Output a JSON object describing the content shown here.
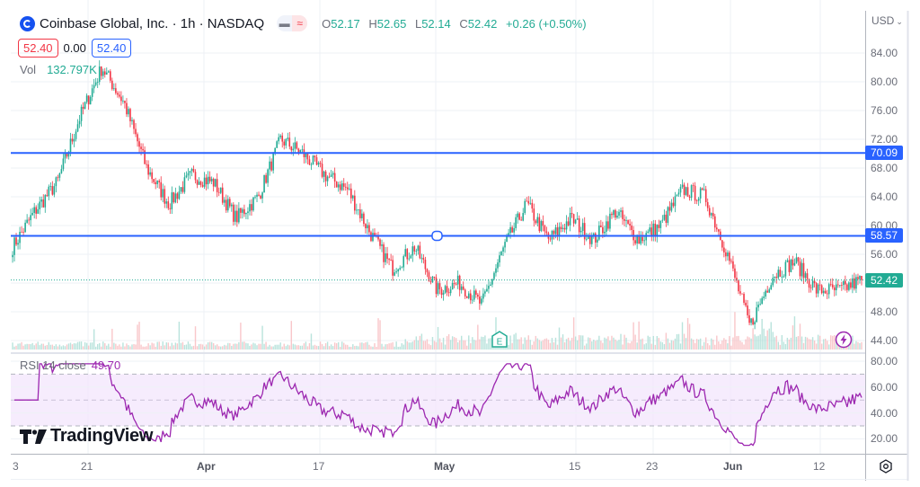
{
  "header": {
    "symbol_title": "Coinbase Global, Inc. · 1h · NASDAQ",
    "logo_icon": "coinbase-logo-icon",
    "toggle_icons": [
      "minus-icon",
      "approx-wave-icon"
    ],
    "ohlc": {
      "open_label": "O",
      "open": "52.17",
      "high_label": "H",
      "high": "52.65",
      "low_label": "L",
      "low": "52.14",
      "close_label": "C",
      "close": "52.42",
      "change": "+0.26 (+0.50%)"
    },
    "bid": "52.40",
    "spread": "0.00",
    "ask": "52.40",
    "volume_label": "Vol",
    "volume_value": "132.797K"
  },
  "price_axis": {
    "currency": "USD",
    "currency_caret": "⌄",
    "ticks": [
      "84.00",
      "80.00",
      "76.00",
      "72.00",
      "68.00",
      "64.00",
      "60.00",
      "56.00",
      "48.00",
      "44.00"
    ],
    "tags": [
      {
        "label": "70.09",
        "color": "#2962ff",
        "kind": "horizontal-line"
      },
      {
        "label": "58.57",
        "color": "#2962ff",
        "kind": "horizontal-line"
      },
      {
        "label": "52.42",
        "color": "#22ab94",
        "kind": "last-price"
      }
    ]
  },
  "rsi": {
    "label": "RSI 14 close",
    "value": "49.70",
    "ticks": [
      "80.00",
      "60.00",
      "40.00",
      "20.00"
    ],
    "band_upper": 70,
    "band_lower": 30,
    "color": "#9c27b0"
  },
  "time_axis": {
    "labels": [
      {
        "text": "3",
        "bold": false
      },
      {
        "text": "21",
        "bold": false
      },
      {
        "text": "Apr",
        "bold": true
      },
      {
        "text": "17",
        "bold": false
      },
      {
        "text": "May",
        "bold": true
      },
      {
        "text": "15",
        "bold": false
      },
      {
        "text": "23",
        "bold": false
      },
      {
        "text": "Jun",
        "bold": true
      },
      {
        "text": "12",
        "bold": false
      }
    ]
  },
  "markers": {
    "earnings_label": "E",
    "earnings_icon": "earnings-marker-icon",
    "dividend_icon": "lightning-icon"
  },
  "branding": {
    "logo_icon": "tradingview-logo-icon",
    "text": "TradingView"
  },
  "settings_icon": "settings-gear-icon",
  "colors": {
    "up": "#22ab94",
    "down": "#f23645",
    "hline": "#2962ff",
    "rsi": "#9c27b0",
    "rsi_band": "#f3e5fc"
  },
  "chart_data": [
    {
      "type": "candlestick",
      "title": "Coinbase Global, Inc. · 1h · NASDAQ",
      "ylabel": "USD",
      "ylim": [
        43,
        87
      ],
      "x_labels": [
        "3",
        "21",
        "Apr",
        "17",
        "May",
        "15",
        "23",
        "Jun",
        "12"
      ],
      "horizontal_lines": [
        70.09,
        58.57
      ],
      "last_price": 52.42,
      "last_bar": {
        "open": 52.17,
        "high": 52.65,
        "low": 52.14,
        "close": 52.42,
        "change": 0.26,
        "change_pct": 0.5
      },
      "approx_close_path": [
        {
          "x_label": "3",
          "close": 57
        },
        {
          "x_label": "~13",
          "close": 62
        },
        {
          "x_label": "~17",
          "close": 66
        },
        {
          "x_label": "~19",
          "close": 75
        },
        {
          "x_label": "21",
          "close": 82
        },
        {
          "x_label": "~22",
          "close": 77
        },
        {
          "x_label": "~24",
          "close": 68
        },
        {
          "x_label": "~27",
          "close": 63
        },
        {
          "x_label": "~30",
          "close": 67
        },
        {
          "x_label": "Apr",
          "close": 66
        },
        {
          "x_label": "~5",
          "close": 61
        },
        {
          "x_label": "~10",
          "close": 64
        },
        {
          "x_label": "~12",
          "close": 72
        },
        {
          "x_label": "17",
          "close": 70
        },
        {
          "x_label": "~19",
          "close": 67
        },
        {
          "x_label": "~21",
          "close": 65
        },
        {
          "x_label": "~25",
          "close": 59
        },
        {
          "x_label": "~26",
          "close": 54
        },
        {
          "x_label": "~28",
          "close": 57
        },
        {
          "x_label": "May",
          "close": 51
        },
        {
          "x_label": "~3",
          "close": 52
        },
        {
          "x_label": "~5",
          "close": 49
        },
        {
          "x_label": "~8",
          "close": 57
        },
        {
          "x_label": "~12",
          "close": 63
        },
        {
          "x_label": "15",
          "close": 58
        },
        {
          "x_label": "~18",
          "close": 61
        },
        {
          "x_label": "~21",
          "close": 58
        },
        {
          "x_label": "23",
          "close": 62
        },
        {
          "x_label": "~26",
          "close": 58
        },
        {
          "x_label": "~30",
          "close": 60
        },
        {
          "x_label": "Jun",
          "close": 65
        },
        {
          "x_label": "~2",
          "close": 64
        },
        {
          "x_label": "~5",
          "close": 56
        },
        {
          "x_label": "~6",
          "close": 46
        },
        {
          "x_label": "~8",
          "close": 53
        },
        {
          "x_label": "~9",
          "close": 55
        },
        {
          "x_label": "~11",
          "close": 51
        },
        {
          "x_label": "12",
          "close": 51
        },
        {
          "x_label": "~14",
          "close": 52.42
        }
      ]
    },
    {
      "type": "line",
      "title": "RSI 14 close",
      "last_value": 49.7,
      "ylim": [
        10,
        85
      ],
      "ticks": [
        80,
        60,
        40,
        20
      ],
      "bands": [
        70,
        30
      ]
    },
    {
      "type": "bar",
      "title": "Vol",
      "last_value": "132.797K"
    }
  ]
}
